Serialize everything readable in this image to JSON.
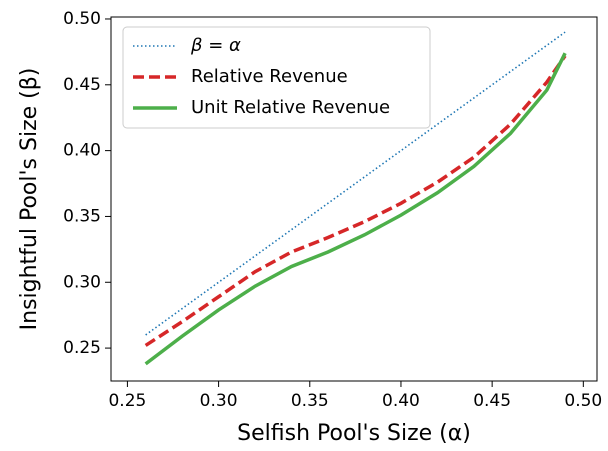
{
  "chart_data": {
    "type": "line",
    "xlabel": "Selfish Pool's Size (α)",
    "ylabel": "Insightful Pool's Size (β)",
    "x": [
      0.26,
      0.28,
      0.3,
      0.32,
      0.34,
      0.36,
      0.38,
      0.4,
      0.42,
      0.44,
      0.46,
      0.48,
      0.49
    ],
    "series": [
      {
        "name": "β = α",
        "color": "#1f77b4",
        "style": "dotted",
        "values": [
          0.26,
          0.28,
          0.3,
          0.32,
          0.34,
          0.36,
          0.38,
          0.4,
          0.42,
          0.44,
          0.46,
          0.48,
          0.49
        ]
      },
      {
        "name": "Relative Revenue",
        "color": "#d62728",
        "style": "dashed",
        "values": [
          0.252,
          0.27,
          0.289,
          0.308,
          0.323,
          0.334,
          0.346,
          0.36,
          0.376,
          0.395,
          0.42,
          0.452,
          0.472
        ]
      },
      {
        "name": "Unit Relative Revenue",
        "color": "#4daf4a",
        "style": "solid",
        "values": [
          0.238,
          0.259,
          0.279,
          0.297,
          0.312,
          0.323,
          0.336,
          0.351,
          0.368,
          0.388,
          0.413,
          0.446,
          0.474
        ]
      }
    ],
    "xlim": [
      0.241,
      0.5075
    ],
    "ylim": [
      0.225,
      0.5015
    ],
    "xticks": [
      0.25,
      {
        "value": 0.3,
        "label": "0.30"
      },
      0.35,
      {
        "value": 0.4,
        "label": "0.40"
      },
      0.45,
      {
        "value": 0.5,
        "label": "0.50"
      }
    ],
    "yticks": [
      0.25,
      {
        "value": 0.3,
        "label": "0.30"
      },
      0.35,
      {
        "value": 0.4,
        "label": "0.40"
      },
      0.45,
      {
        "value": 0.5,
        "label": "0.50"
      }
    ],
    "legend": "upper left",
    "grid": false
  }
}
